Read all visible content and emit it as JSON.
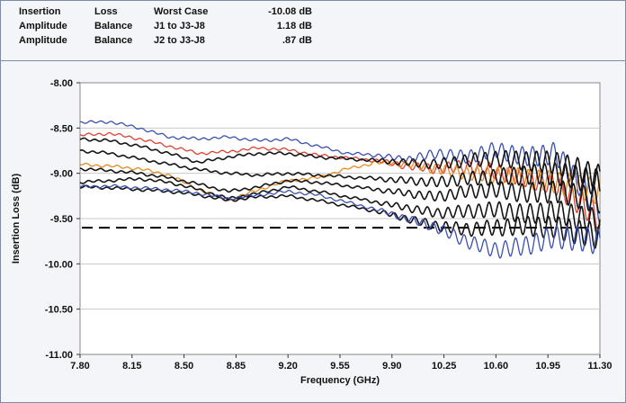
{
  "header": {
    "rows": [
      {
        "c1": "Insertion",
        "c2": "Loss",
        "c3": "Worst Case",
        "c4": "-10.08 dB"
      },
      {
        "c1": "Amplitude",
        "c2": "Balance",
        "c3": "J1 to J3-J8",
        "c4": "1.18 dB"
      },
      {
        "c1": "Amplitude",
        "c2": "Balance",
        "c3": "J2 to J3-J8",
        "c4": ".87 dB"
      }
    ]
  },
  "chart_data": {
    "type": "line",
    "title": "",
    "xlabel": "Frequency (GHz)",
    "ylabel": "Insertion Loss (dB)",
    "xlim": [
      7.8,
      11.3
    ],
    "ylim": [
      -11.0,
      -8.0
    ],
    "x_ticks": [
      "7.80",
      "8.15",
      "8.50",
      "8.85",
      "9.20",
      "9.55",
      "9.90",
      "10.25",
      "10.60",
      "10.95",
      "11.30"
    ],
    "y_ticks": [
      "-8.00",
      "-8.50",
      "-9.00",
      "-9.50",
      "-10.00",
      "-10.50",
      "-11.00"
    ],
    "grid": "horizontal",
    "reference_line": {
      "y": -9.6,
      "style": "dashed",
      "color": "#000000"
    },
    "series": [
      {
        "color": "#3a4fb0",
        "x": [
          7.8,
          8.0,
          8.2,
          8.4,
          8.6,
          8.8,
          9.0,
          9.2,
          9.4,
          9.6,
          9.8,
          10.0,
          10.2,
          10.4,
          10.6,
          10.8,
          11.0,
          11.3
        ],
        "y": [
          -8.44,
          -8.43,
          -8.5,
          -8.6,
          -8.62,
          -8.6,
          -8.64,
          -8.62,
          -8.7,
          -8.78,
          -8.8,
          -8.85,
          -8.78,
          -8.82,
          -8.74,
          -8.82,
          -8.78,
          -9.4
        ]
      },
      {
        "color": "#e04030",
        "x": [
          7.8,
          8.0,
          8.2,
          8.4,
          8.6,
          8.8,
          9.0,
          9.2,
          9.4,
          9.6,
          9.8,
          10.0,
          10.2,
          10.4,
          10.6,
          10.8,
          11.0,
          11.3
        ],
        "y": [
          -8.58,
          -8.56,
          -8.62,
          -8.7,
          -8.78,
          -8.76,
          -8.72,
          -8.74,
          -8.8,
          -8.83,
          -8.86,
          -8.92,
          -8.95,
          -8.92,
          -8.98,
          -9.05,
          -9.12,
          -9.5
        ]
      },
      {
        "color": "#e88a20",
        "x": [
          7.8,
          8.0,
          8.2,
          8.4,
          8.6,
          8.8,
          9.0,
          9.2,
          9.4,
          9.6,
          9.8,
          10.0,
          10.2,
          10.4,
          10.6,
          10.8,
          11.0,
          11.3
        ],
        "y": [
          -8.9,
          -8.92,
          -8.95,
          -9.02,
          -9.18,
          -9.3,
          -9.18,
          -9.08,
          -9.05,
          -8.95,
          -8.88,
          -8.9,
          -8.95,
          -9.0,
          -9.02,
          -9.05,
          -9.1,
          -9.2
        ]
      },
      {
        "color": "#151515",
        "x": [
          7.8,
          8.0,
          8.2,
          8.4,
          8.6,
          8.8,
          9.0,
          9.2,
          9.4,
          9.6,
          9.8,
          10.0,
          10.2,
          10.4,
          10.6,
          10.8,
          11.0,
          11.3
        ],
        "y": [
          -8.62,
          -8.64,
          -8.7,
          -8.78,
          -8.88,
          -8.82,
          -8.78,
          -8.78,
          -8.82,
          -8.84,
          -8.86,
          -8.88,
          -8.9,
          -8.86,
          -8.84,
          -8.86,
          -8.88,
          -9.05
        ]
      },
      {
        "color": "#151515",
        "x": [
          7.8,
          8.0,
          8.2,
          8.4,
          8.6,
          8.8,
          9.0,
          9.2,
          9.4,
          9.6,
          9.8,
          10.0,
          10.2,
          10.4,
          10.6,
          10.8,
          11.0,
          11.3
        ],
        "y": [
          -8.75,
          -8.78,
          -8.84,
          -8.9,
          -8.96,
          -9.0,
          -9.02,
          -9.0,
          -9.02,
          -9.04,
          -9.06,
          -9.08,
          -9.1,
          -9.06,
          -9.04,
          -9.02,
          -9.0,
          -9.1
        ]
      },
      {
        "color": "#151515",
        "x": [
          7.8,
          8.0,
          8.2,
          8.4,
          8.6,
          8.8,
          9.0,
          9.2,
          9.4,
          9.6,
          9.8,
          10.0,
          10.2,
          10.4,
          10.6,
          10.8,
          11.0,
          11.3
        ],
        "y": [
          -8.95,
          -8.97,
          -9.0,
          -9.05,
          -9.12,
          -9.2,
          -9.15,
          -9.08,
          -9.1,
          -9.14,
          -9.18,
          -9.22,
          -9.26,
          -9.2,
          -9.18,
          -9.22,
          -9.2,
          -9.3
        ]
      },
      {
        "color": "#151515",
        "x": [
          7.8,
          8.0,
          8.2,
          8.4,
          8.6,
          8.8,
          9.0,
          9.2,
          9.4,
          9.6,
          9.8,
          10.0,
          10.2,
          10.4,
          10.6,
          10.8,
          11.0,
          11.3
        ],
        "y": [
          -9.1,
          -9.08,
          -9.06,
          -9.1,
          -9.18,
          -9.28,
          -9.22,
          -9.15,
          -9.2,
          -9.26,
          -9.32,
          -9.38,
          -9.44,
          -9.42,
          -9.4,
          -9.45,
          -9.42,
          -9.55
        ]
      },
      {
        "color": "#151515",
        "x": [
          7.8,
          8.0,
          8.2,
          8.4,
          8.6,
          8.8,
          9.0,
          9.2,
          9.4,
          9.6,
          9.8,
          10.0,
          10.2,
          10.4,
          10.6,
          10.8,
          11.0,
          11.3
        ],
        "y": [
          -9.15,
          -9.16,
          -9.18,
          -9.2,
          -9.24,
          -9.3,
          -9.26,
          -9.25,
          -9.3,
          -9.36,
          -9.42,
          -9.5,
          -9.58,
          -9.62,
          -9.6,
          -9.58,
          -9.6,
          -9.7
        ]
      },
      {
        "color": "#3a4fb0",
        "x": [
          7.8,
          8.0,
          8.2,
          8.4,
          8.6,
          8.8,
          9.0,
          9.2,
          9.4,
          9.6,
          9.8,
          10.0,
          10.2,
          10.4,
          10.6,
          10.8,
          11.0,
          11.3
        ],
        "y": [
          -9.15,
          -9.14,
          -9.16,
          -9.18,
          -9.22,
          -9.28,
          -9.24,
          -9.2,
          -9.24,
          -9.32,
          -9.4,
          -9.5,
          -9.6,
          -9.75,
          -9.85,
          -9.8,
          -9.7,
          -9.75
        ]
      }
    ]
  }
}
